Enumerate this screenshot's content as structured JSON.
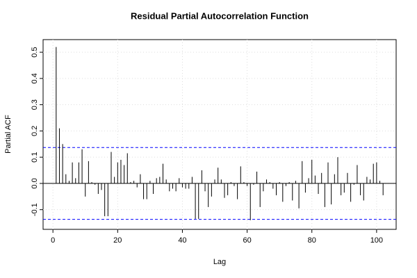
{
  "chart_data": {
    "type": "bar",
    "title": "Residual Partial Autocorrelation Function",
    "xlabel": "Lag",
    "ylabel": "Partial ACF",
    "x": [
      1,
      2,
      3,
      4,
      5,
      6,
      7,
      8,
      9,
      10,
      11,
      12,
      13,
      14,
      15,
      16,
      17,
      18,
      19,
      20,
      21,
      22,
      23,
      24,
      25,
      26,
      27,
      28,
      29,
      30,
      31,
      32,
      33,
      34,
      35,
      36,
      37,
      38,
      39,
      40,
      41,
      42,
      43,
      44,
      45,
      46,
      47,
      48,
      49,
      50,
      51,
      52,
      53,
      54,
      55,
      56,
      57,
      58,
      59,
      60,
      61,
      62,
      63,
      64,
      65,
      66,
      67,
      68,
      69,
      70,
      71,
      72,
      73,
      74,
      75,
      76,
      77,
      78,
      79,
      80,
      81,
      82,
      83,
      84,
      85,
      86,
      87,
      88,
      89,
      90,
      91,
      92,
      93,
      94,
      95,
      96,
      97,
      98,
      99,
      100,
      101,
      102
    ],
    "values": [
      0.52,
      0.21,
      0.15,
      0.035,
      0.01,
      0.08,
      0.02,
      0.08,
      0.13,
      -0.05,
      0.085,
      0.005,
      -0.005,
      -0.04,
      -0.025,
      -0.125,
      -0.125,
      0.12,
      0.025,
      0.08,
      0.09,
      0.07,
      0.115,
      0.005,
      0.01,
      -0.015,
      0.035,
      -0.06,
      -0.06,
      0.01,
      -0.04,
      0.02,
      0.025,
      0.075,
      0.015,
      -0.03,
      -0.02,
      -0.03,
      0.02,
      -0.015,
      -0.02,
      -0.02,
      0.025,
      -0.135,
      -0.135,
      0.05,
      -0.03,
      -0.09,
      -0.05,
      0.015,
      0.06,
      0.015,
      -0.055,
      -0.045,
      0.005,
      -0.01,
      -0.06,
      0.065,
      0.005,
      -0.01,
      -0.14,
      -0.005,
      0.045,
      -0.09,
      -0.03,
      0.015,
      0.005,
      -0.02,
      -0.045,
      0.005,
      -0.07,
      -0.01,
      0.005,
      -0.065,
      0.01,
      -0.095,
      0.085,
      -0.035,
      0.02,
      0.09,
      0.03,
      -0.04,
      0.04,
      -0.09,
      0.08,
      -0.08,
      0.035,
      0.1,
      -0.045,
      -0.035,
      0.04,
      -0.07,
      -0.005,
      0.07,
      -0.045,
      -0.065,
      0.025,
      0.015,
      0.075,
      0.08,
      0.01,
      -0.045
    ],
    "color": "#000000",
    "ci": [
      -0.137,
      0.137
    ],
    "ci_color": "#0000ff",
    "xlim": [
      -3.04,
      106.04
    ],
    "xticks": [
      0,
      20,
      40,
      60,
      80,
      100
    ],
    "ylim": [
      -0.175,
      0.548
    ],
    "yticks": [
      -0.1,
      {
        "value": 0,
        "label": "0.0"
      },
      0.1,
      0.2,
      0.3,
      0.4,
      0.5
    ],
    "grid": true
  }
}
